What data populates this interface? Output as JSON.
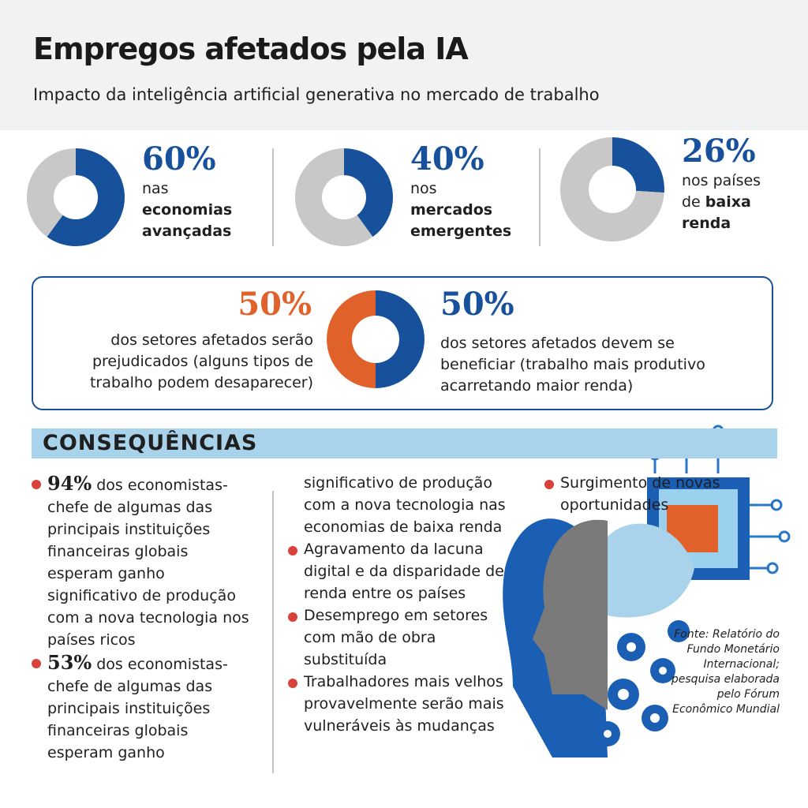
{
  "title": "Empregos afetados pela IA",
  "subtitle": "Impacto da inteligência artificial generativa no mercado de trabalho",
  "stats": [
    {
      "value": 60,
      "value_label": "60%",
      "prefix": "nas",
      "bold": "economias avançadas"
    },
    {
      "value": 40,
      "value_label": "40%",
      "prefix": "nos",
      "bold": "mercados emergentes"
    },
    {
      "value": 26,
      "value_label": "26%",
      "prefix": "nos países de",
      "bold": "baixa renda"
    }
  ],
  "split": {
    "left": {
      "value": 50,
      "value_label": "50%",
      "text": "dos setores afetados serão prejudicados (alguns tipos de trabalho podem desaparecer)"
    },
    "right": {
      "value": 50,
      "value_label": "50%",
      "text": "dos setores afetados devem se beneficiar (trabalho mais produtivo acarretando maior renda)"
    }
  },
  "consequences": {
    "heading": "CONSEQUÊNCIAS",
    "items": [
      {
        "number": "94%",
        "text": "dos economistas-chefe de algumas das principais instituições financeiras globais esperam ganho significativo de produção com a nova tecnologia nos países ricos"
      },
      {
        "number": "53%",
        "text": "dos economistas-chefe de algumas das principais instituições financeiras globais esperam ganho significativo de produção com a nova tecnologia nas economias de baixa renda"
      },
      {
        "text": "Agravamento da lacuna digital e da disparidade de renda entre os países"
      },
      {
        "text": "Desemprego em setores com mão de obra substituída"
      },
      {
        "text": "Trabalhadores mais velhos provavelmente serão mais vulneráveis às mudanças"
      },
      {
        "text": "Surgimento de novas oportunidades"
      }
    ]
  },
  "source": "Fonte: Relatório do Fundo Monetário Internacional; pesquisa elaborada pelo Fórum Econômico Mundial"
}
